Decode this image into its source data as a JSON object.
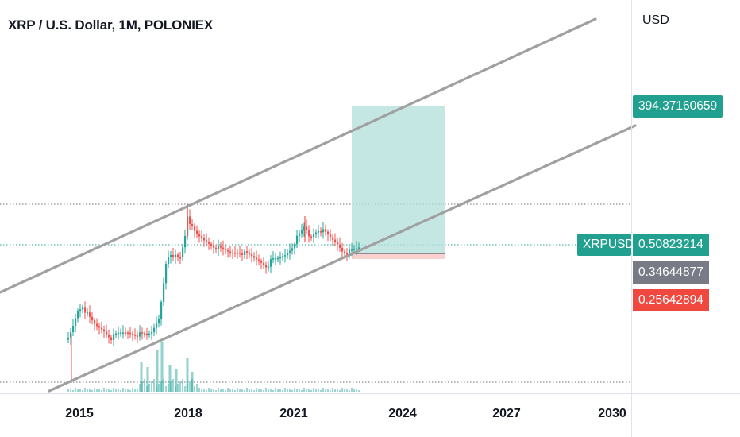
{
  "chart_data": {
    "type": "candlestick",
    "title": "XRP / U.S. Dollar, 1M, POLONIEX",
    "currency": "USD",
    "symbol": "XRPUSD",
    "x_ticks": [
      "2015",
      "2018",
      "2021",
      "2024",
      "2027",
      "2030"
    ],
    "price_labels": {
      "target": "394.37160659",
      "last": "0.50823214",
      "entry": "0.34644877",
      "stop": "0.25642894"
    },
    "colors": {
      "up": "#26a69a",
      "down": "#ef5350",
      "channel": "#a0a0a0",
      "profit_zone": "#b2dfdb",
      "loss_zone": "#f8c6c6",
      "tag_green": "#22a08f",
      "tag_gray": "#787b86",
      "tag_red": "#f0473f"
    }
  }
}
